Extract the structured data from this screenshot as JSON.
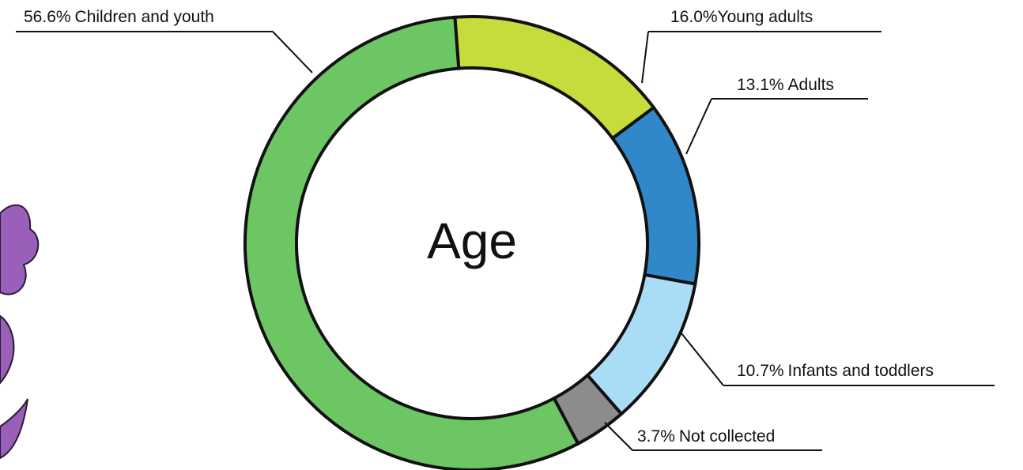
{
  "chart_data": {
    "type": "donut",
    "title": "Age",
    "categories": [
      "Young adults",
      "Adults",
      "Infants and toddlers",
      "Not collected",
      "Children and youth"
    ],
    "values": [
      16.0,
      13.1,
      10.7,
      3.7,
      56.6
    ],
    "value_labels": [
      "16.0%",
      "13.1%",
      "10.7%",
      "3.7%",
      "56.6%"
    ],
    "colors": [
      "#c6dc3c",
      "#3088c9",
      "#a9ddf6",
      "#8c8c8c",
      "#6dc664"
    ]
  }
}
